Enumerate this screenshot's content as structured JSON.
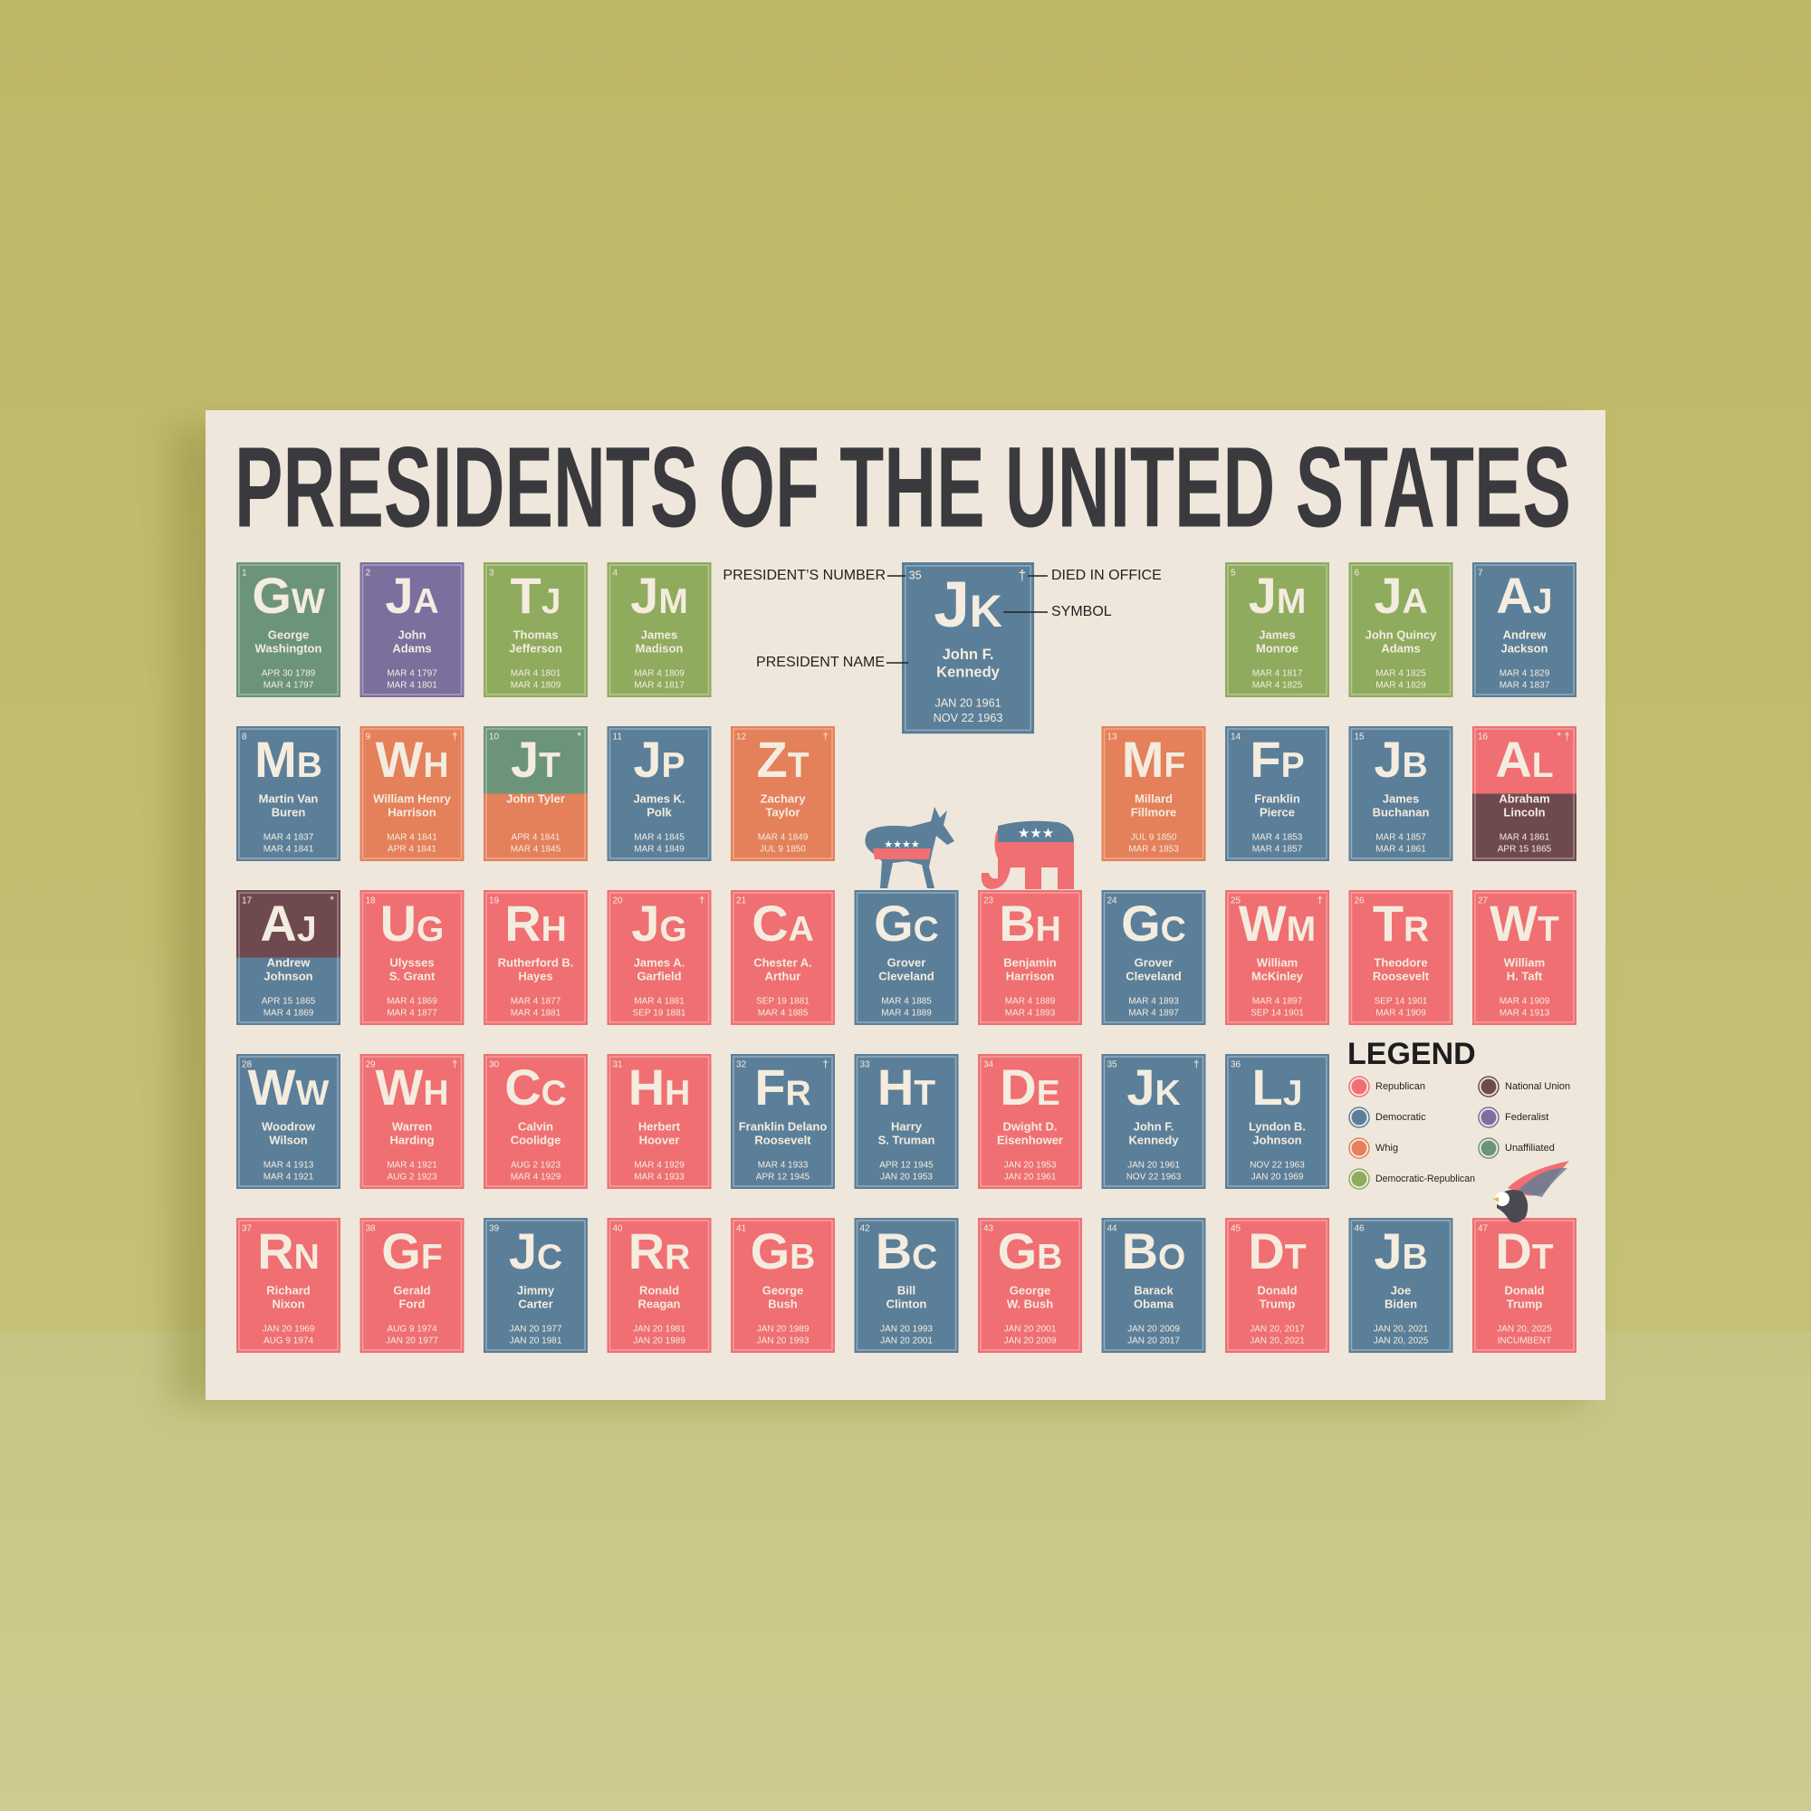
{
  "title": "PRESIDENTS OF THE UNITED STATES",
  "example": {
    "labels": {
      "number": "PRESIDENT’S NUMBER",
      "died": "DIED IN OFFICE",
      "symbol": "SYMBOL",
      "name": "PRESIDENT NAME"
    },
    "tile": {
      "number": 35,
      "symbol": "Jk",
      "name": [
        "John F.",
        "Kennedy"
      ],
      "dates": [
        "JAN 20 1961",
        "NOV 22 1963"
      ],
      "marks": "†",
      "colors": [
        "#5b7f99"
      ]
    }
  },
  "tiles": [
    {
      "number": 1,
      "symbol": "Gw",
      "name": [
        "George",
        "Washington"
      ],
      "dates": [
        "APR 30 1789",
        "MAR 4 1797"
      ],
      "colors": [
        "#6c9479"
      ]
    },
    {
      "number": 2,
      "symbol": "Ja",
      "name": [
        "John",
        "Adams"
      ],
      "dates": [
        "MAR 4 1797",
        "MAR 4 1801"
      ],
      "colors": [
        "#7b6f9e"
      ]
    },
    {
      "number": 3,
      "symbol": "Tj",
      "name": [
        "Thomas",
        "Jefferson"
      ],
      "dates": [
        "MAR 4 1801",
        "MAR 4 1809"
      ],
      "colors": [
        "#8fab5e"
      ]
    },
    {
      "number": 4,
      "symbol": "Jm",
      "name": [
        "James",
        "Madison"
      ],
      "dates": [
        "MAR 4 1809",
        "MAR 4 1817"
      ],
      "colors": [
        "#8fab5e"
      ]
    },
    {
      "number": 5,
      "symbol": "Jm",
      "name": [
        "James",
        "Monroe"
      ],
      "dates": [
        "MAR 4 1817",
        "MAR 4 1825"
      ],
      "colors": [
        "#8fab5e"
      ]
    },
    {
      "number": 6,
      "symbol": "Ja",
      "name": [
        "John Quincy",
        "Adams"
      ],
      "dates": [
        "MAR 4 1825",
        "MAR 4 1829"
      ],
      "colors": [
        "#8fab5e"
      ]
    },
    {
      "number": 7,
      "symbol": "Aj",
      "name": [
        "Andrew",
        "Jackson"
      ],
      "dates": [
        "MAR 4 1829",
        "MAR 4 1837"
      ],
      "colors": [
        "#5b7f99"
      ]
    },
    {
      "number": 8,
      "symbol": "Mb",
      "name": [
        "Martin Van",
        "Buren"
      ],
      "dates": [
        "MAR 4 1837",
        "MAR 4 1841"
      ],
      "colors": [
        "#5b7f99"
      ]
    },
    {
      "number": 9,
      "symbol": "Wh",
      "name": [
        "William Henry",
        "Harrison"
      ],
      "dates": [
        "MAR 4 1841",
        "APR 4 1841"
      ],
      "marks": "†",
      "colors": [
        "#e4805a"
      ]
    },
    {
      "number": 10,
      "symbol": "Jt",
      "name": [
        "John Tyler"
      ],
      "dates": [
        "APR 4 1841",
        "MAR 4 1845"
      ],
      "marks": "*",
      "colors": [
        "#6c9479",
        "#e4805a"
      ]
    },
    {
      "number": 11,
      "symbol": "Jp",
      "name": [
        "James K.",
        "Polk"
      ],
      "dates": [
        "MAR 4 1845",
        "MAR 4 1849"
      ],
      "colors": [
        "#5b7f99"
      ]
    },
    {
      "number": 12,
      "symbol": "Zt",
      "name": [
        "Zachary",
        "Taylor"
      ],
      "dates": [
        "MAR 4 1849",
        "JUL 9 1850"
      ],
      "marks": "†",
      "colors": [
        "#e4805a"
      ]
    },
    {
      "number": 13,
      "symbol": "Mf",
      "name": [
        "Millard",
        "Fillmore"
      ],
      "dates": [
        "JUL 9 1850",
        "MAR 4 1853"
      ],
      "colors": [
        "#e4805a"
      ]
    },
    {
      "number": 14,
      "symbol": "Fp",
      "name": [
        "Franklin",
        "Pierce"
      ],
      "dates": [
        "MAR 4 1853",
        "MAR 4 1857"
      ],
      "colors": [
        "#5b7f99"
      ]
    },
    {
      "number": 15,
      "symbol": "Jb",
      "name": [
        "James",
        "Buchanan"
      ],
      "dates": [
        "MAR 4 1857",
        "MAR 4 1861"
      ],
      "colors": [
        "#5b7f99"
      ]
    },
    {
      "number": 16,
      "symbol": "Al",
      "name": [
        "Abraham",
        "Lincoln"
      ],
      "dates": [
        "MAR 4 1861",
        "APR 15 1865"
      ],
      "marks": "* †",
      "colors": [
        "#ef6f72",
        "#6e4a4f"
      ]
    },
    {
      "number": 17,
      "symbol": "Aj",
      "name": [
        "Andrew",
        "Johnson"
      ],
      "dates": [
        "APR 15 1865",
        "MAR 4 1869"
      ],
      "marks": "*",
      "colors": [
        "#6e4a4f",
        "#5b7f99"
      ]
    },
    {
      "number": 18,
      "symbol": "Ug",
      "name": [
        "Ulysses",
        "S. Grant"
      ],
      "dates": [
        "MAR 4 1869",
        "MAR 4 1877"
      ],
      "colors": [
        "#ef6f72"
      ]
    },
    {
      "number": 19,
      "symbol": "Rh",
      "name": [
        "Rutherford B.",
        "Hayes"
      ],
      "dates": [
        "MAR 4 1877",
        "MAR 4 1881"
      ],
      "colors": [
        "#ef6f72"
      ]
    },
    {
      "number": 20,
      "symbol": "Jg",
      "name": [
        "James A.",
        "Garfield"
      ],
      "dates": [
        "MAR 4 1881",
        "SEP 19 1881"
      ],
      "marks": "†",
      "colors": [
        "#ef6f72"
      ]
    },
    {
      "number": 21,
      "symbol": "Ca",
      "name": [
        "Chester A.",
        "Arthur"
      ],
      "dates": [
        "SEP 19 1881",
        "MAR 4 1885"
      ],
      "colors": [
        "#ef6f72"
      ]
    },
    {
      "number": null,
      "symbol": "Gc",
      "name": [
        "Grover",
        "Cleveland"
      ],
      "dates": [
        "MAR 4 1885",
        "MAR 4 1889"
      ],
      "colors": [
        "#5b7f99"
      ]
    },
    {
      "number": 23,
      "symbol": "Bh",
      "name": [
        "Benjamin",
        "Harrison"
      ],
      "dates": [
        "MAR 4 1889",
        "MAR 4 1893"
      ],
      "colors": [
        "#ef6f72"
      ]
    },
    {
      "number": 24,
      "symbol": "Gc",
      "name": [
        "Grover",
        "Cleveland"
      ],
      "dates": [
        "MAR 4 1893",
        "MAR 4 1897"
      ],
      "colors": [
        "#5b7f99"
      ]
    },
    {
      "number": 25,
      "symbol": "Wm",
      "name": [
        "William",
        "McKinley"
      ],
      "dates": [
        "MAR 4 1897",
        "SEP 14 1901"
      ],
      "marks": "†",
      "colors": [
        "#ef6f72"
      ]
    },
    {
      "number": 26,
      "symbol": "Tr",
      "name": [
        "Theodore",
        "Roosevelt"
      ],
      "dates": [
        "SEP 14 1901",
        "MAR 4 1909"
      ],
      "colors": [
        "#ef6f72"
      ]
    },
    {
      "number": 27,
      "symbol": "Wt",
      "name": [
        "William",
        "H. Taft"
      ],
      "dates": [
        "MAR 4 1909",
        "MAR 4 1913"
      ],
      "colors": [
        "#ef6f72"
      ]
    },
    {
      "number": 28,
      "symbol": "Ww",
      "name": [
        "Woodrow",
        "Wilson"
      ],
      "dates": [
        "MAR 4 1913",
        "MAR 4 1921"
      ],
      "colors": [
        "#5b7f99"
      ]
    },
    {
      "number": 29,
      "symbol": "Wh",
      "name": [
        "Warren",
        "Harding"
      ],
      "dates": [
        "MAR 4 1921",
        "AUG 2 1923"
      ],
      "marks": "†",
      "colors": [
        "#ef6f72"
      ]
    },
    {
      "number": 30,
      "symbol": "Cc",
      "name": [
        "Calvin",
        "Coolidge"
      ],
      "dates": [
        "AUG 2 1923",
        "MAR 4 1929"
      ],
      "colors": [
        "#ef6f72"
      ]
    },
    {
      "number": 31,
      "symbol": "Hh",
      "name": [
        "Herbert",
        "Hoover"
      ],
      "dates": [
        "MAR 4 1929",
        "MAR 4 1933"
      ],
      "colors": [
        "#ef6f72"
      ]
    },
    {
      "number": 32,
      "symbol": "Fr",
      "name": [
        "Franklin Delano",
        "Roosevelt"
      ],
      "dates": [
        "MAR 4 1933",
        "APR 12 1945"
      ],
      "marks": "†",
      "colors": [
        "#5b7f99"
      ]
    },
    {
      "number": 33,
      "symbol": "Ht",
      "name": [
        "Harry",
        "S. Truman"
      ],
      "dates": [
        "APR 12 1945",
        "JAN 20 1953"
      ],
      "colors": [
        "#5b7f99"
      ]
    },
    {
      "number": 34,
      "symbol": "De",
      "name": [
        "Dwight D.",
        "Eisenhower"
      ],
      "dates": [
        "JAN 20 1953",
        "JAN 20 1961"
      ],
      "colors": [
        "#ef6f72"
      ]
    },
    {
      "number": 35,
      "symbol": "Jk",
      "name": [
        "John F.",
        "Kennedy"
      ],
      "dates": [
        "JAN 20 1961",
        "NOV 22 1963"
      ],
      "marks": "†",
      "colors": [
        "#5b7f99"
      ]
    },
    {
      "number": 36,
      "symbol": "Lj",
      "name": [
        "Lyndon B.",
        "Johnson"
      ],
      "dates": [
        "NOV 22 1963",
        "JAN 20 1969"
      ],
      "colors": [
        "#5b7f99"
      ]
    },
    {
      "number": 37,
      "symbol": "Rn",
      "name": [
        "Richard",
        "Nixon"
      ],
      "dates": [
        "JAN 20 1969",
        "AUG 9 1974"
      ],
      "colors": [
        "#ef6f72"
      ]
    },
    {
      "number": 38,
      "symbol": "Gf",
      "name": [
        "Gerald",
        "Ford"
      ],
      "dates": [
        "AUG 9 1974",
        "JAN 20 1977"
      ],
      "colors": [
        "#ef6f72"
      ]
    },
    {
      "number": 39,
      "symbol": "Jc",
      "name": [
        "Jimmy",
        "Carter"
      ],
      "dates": [
        "JAN 20 1977",
        "JAN 20 1981"
      ],
      "colors": [
        "#5b7f99"
      ]
    },
    {
      "number": 40,
      "symbol": "Rr",
      "name": [
        "Ronald",
        "Reagan"
      ],
      "dates": [
        "JAN 20 1981",
        "JAN 20 1989"
      ],
      "colors": [
        "#ef6f72"
      ]
    },
    {
      "number": 41,
      "symbol": "Gb",
      "name": [
        "George",
        "Bush"
      ],
      "dates": [
        "JAN 20 1989",
        "JAN 20 1993"
      ],
      "colors": [
        "#ef6f72"
      ]
    },
    {
      "number": 42,
      "symbol": "Bc",
      "name": [
        "Bill",
        "Clinton"
      ],
      "dates": [
        "JAN 20 1993",
        "JAN 20 2001"
      ],
      "colors": [
        "#5b7f99"
      ]
    },
    {
      "number": 43,
      "symbol": "Gb",
      "name": [
        "George",
        "W. Bush"
      ],
      "dates": [
        "JAN 20 2001",
        "JAN 20 2009"
      ],
      "colors": [
        "#ef6f72"
      ]
    },
    {
      "number": 44,
      "symbol": "Bo",
      "name": [
        "Barack",
        "Obama"
      ],
      "dates": [
        "JAN 20 2009",
        "JAN 20 2017"
      ],
      "colors": [
        "#5b7f99"
      ]
    },
    {
      "number": 45,
      "symbol": "Dt",
      "name": [
        "Donald",
        "Trump"
      ],
      "dates": [
        "JAN 20, 2017",
        "JAN 20, 2021"
      ],
      "colors": [
        "#ef6f72"
      ]
    },
    {
      "number": 46,
      "symbol": "Jb",
      "name": [
        "Joe",
        "Biden"
      ],
      "dates": [
        "JAN 20, 2021",
        "JAN 20, 2025"
      ],
      "colors": [
        "#5b7f99"
      ]
    },
    {
      "number": 47,
      "symbol": "Dt",
      "name": [
        "Donald",
        "Trump"
      ],
      "dates": [
        "JAN 20, 2025",
        "INCUMBENT"
      ],
      "colors": [
        "#ef6f72"
      ]
    }
  ],
  "legend": {
    "title": "LEGEND",
    "items": [
      {
        "name": "Republican",
        "color": "#ef6f72"
      },
      {
        "name": "Democratic",
        "color": "#5b7f99"
      },
      {
        "name": "Whig",
        "color": "#e4805a"
      },
      {
        "name": "Democratic-Republican",
        "color": "#8fab5e"
      },
      {
        "name": "National Union",
        "color": "#6e4a4f"
      },
      {
        "name": "Federalist",
        "color": "#7b6f9e"
      },
      {
        "name": "Unaffiliated",
        "color": "#6c9479"
      }
    ]
  }
}
